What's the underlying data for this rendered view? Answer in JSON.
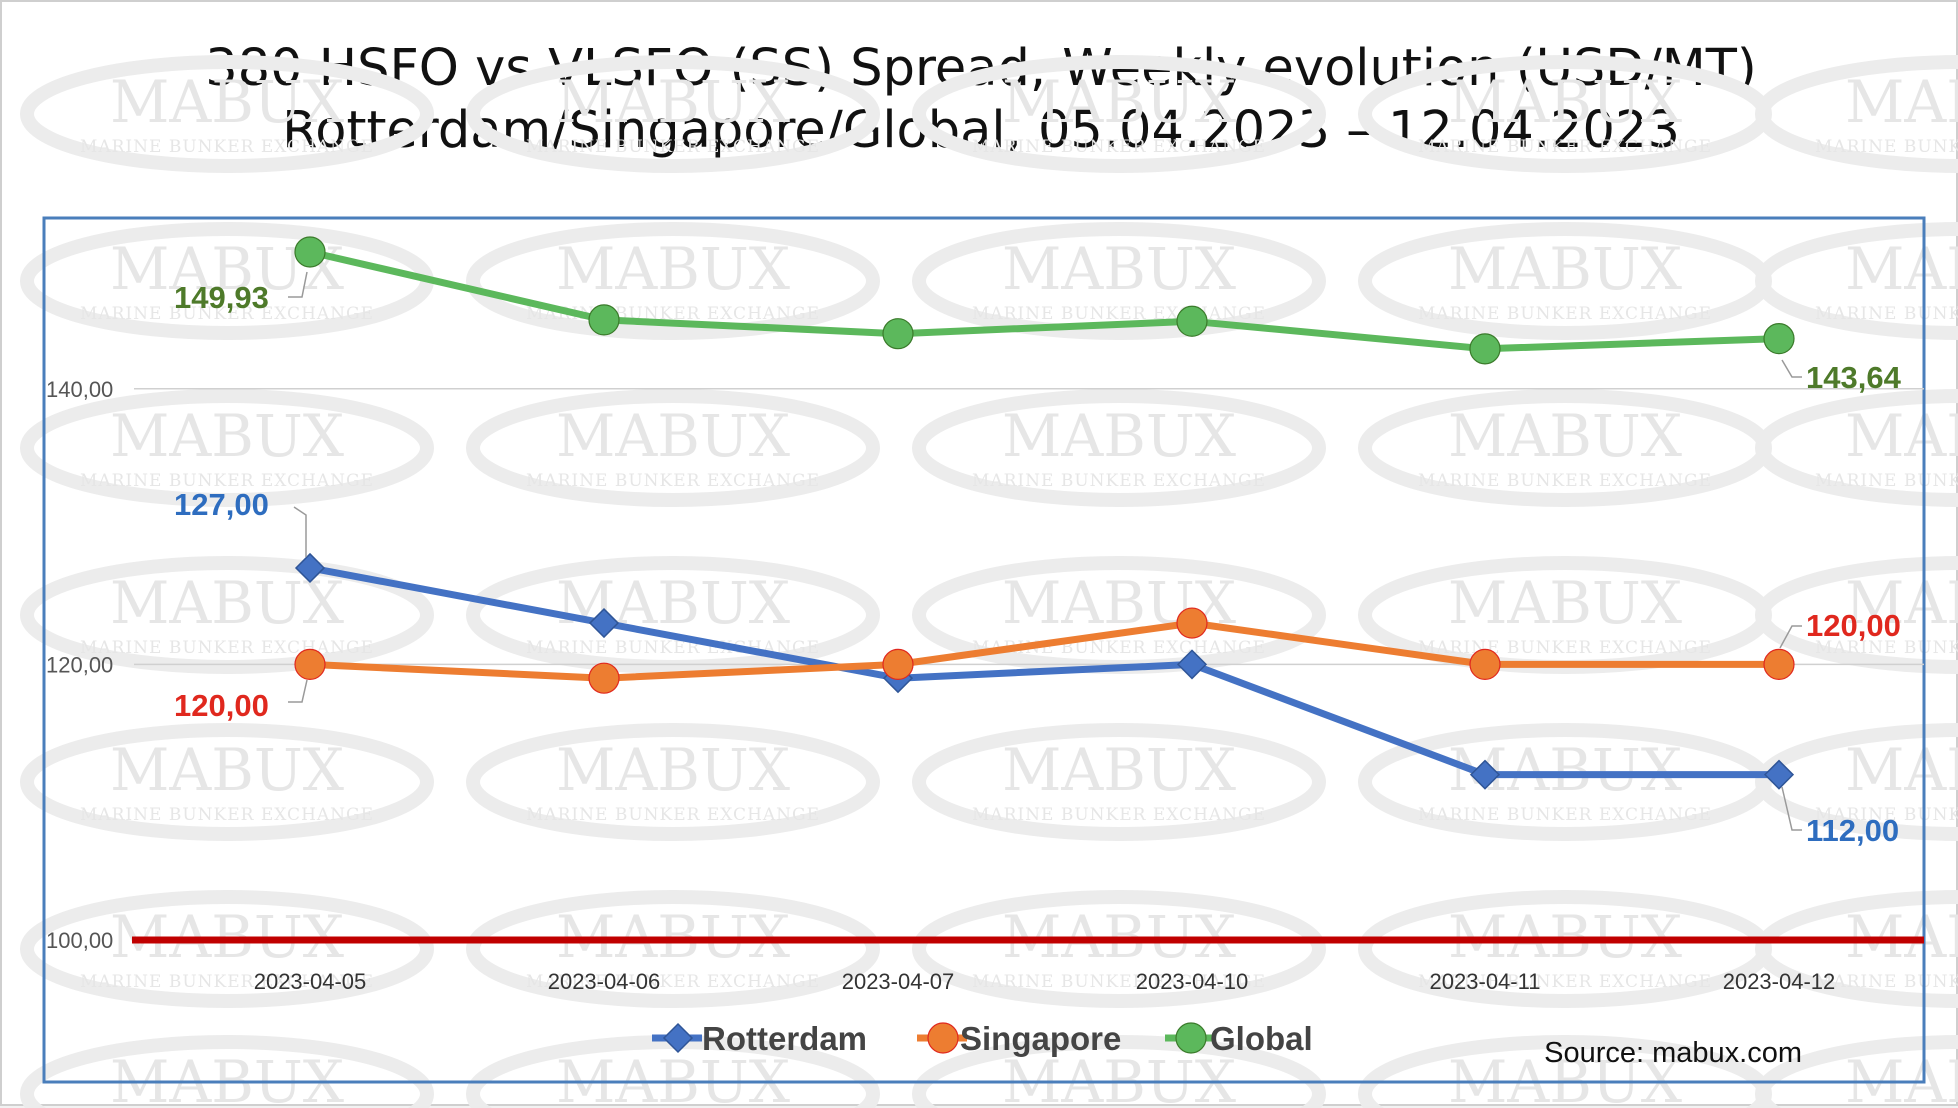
{
  "title_lines": [
    "380 HSFO vs VLSFO (SS) Spread, Weekly evolution (USD/MT)",
    "Rotterdam/Singapore/Global, 05.04.2023 – 12.04.2023"
  ],
  "watermark": {
    "brand": "MABUX",
    "tagline": "MARINE BUNKER EXCHANGE"
  },
  "source": "Source: mabux.com",
  "chart_data": {
    "type": "line",
    "title": "380 HSFO vs VLSFO (SS) Spread, Weekly evolution (USD/MT) Rotterdam/Singapore/Global, 05.04.2023 – 12.04.2023",
    "categories": [
      "2023-04-05",
      "2023-04-06",
      "2023-04-07",
      "2023-04-10",
      "2023-04-11",
      "2023-04-12"
    ],
    "ylim": [
      100,
      150
    ],
    "yticks": [
      100,
      120,
      140
    ],
    "ytick_labels": [
      "100,00",
      "120,00",
      "140,00"
    ],
    "grid": true,
    "legend_position": "bottom",
    "reference_line": {
      "value": 100,
      "color": "#c00000"
    },
    "series": [
      {
        "name": "Rotterdam",
        "color": "#4472c4",
        "marker": "diamond",
        "values": [
          127.0,
          123.0,
          119.0,
          120.0,
          112.0,
          112.0
        ],
        "labels": [
          {
            "index": 0,
            "text": "127,00",
            "color": "#2e6dbf"
          },
          {
            "index": 5,
            "text": "112,00",
            "color": "#2e6dbf"
          }
        ]
      },
      {
        "name": "Singapore",
        "color": "#ed7d31",
        "marker": "circle",
        "values": [
          120.0,
          119.0,
          120.0,
          123.0,
          120.0,
          120.0
        ],
        "labels": [
          {
            "index": 0,
            "text": "120,00",
            "color": "#e0281e"
          },
          {
            "index": 5,
            "text": "120,00",
            "color": "#e0281e"
          }
        ]
      },
      {
        "name": "Global",
        "color": "#5cb85c",
        "marker": "circle",
        "values": [
          149.93,
          145.0,
          144.0,
          144.9,
          142.9,
          143.64
        ],
        "labels": [
          {
            "index": 0,
            "text": "149,93",
            "color": "#4e7a2a"
          },
          {
            "index": 5,
            "text": "143,64",
            "color": "#4e7a2a"
          }
        ]
      }
    ]
  }
}
